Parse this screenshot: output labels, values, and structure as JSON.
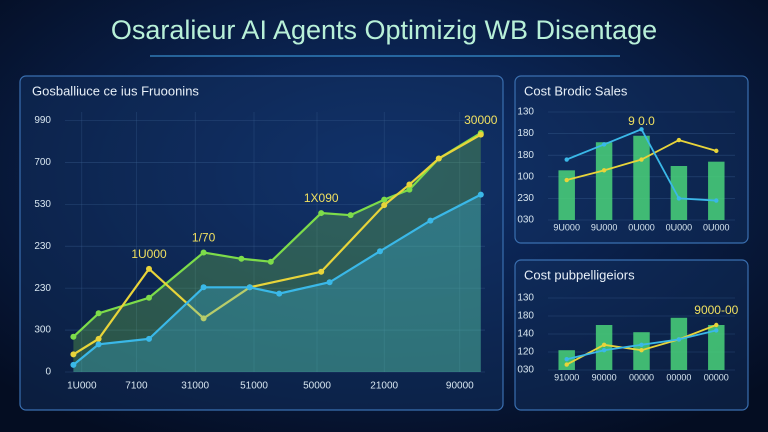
{
  "header": {
    "title": "Osaralieur AI Agents Optimizig WB Disentage"
  },
  "chart_data": [
    {
      "type": "line",
      "title": "Gosballiuce ce ius Fruoonins",
      "xlim": [
        0,
        100
      ],
      "xticks": [
        {
          "value": 4,
          "label": "1U000"
        },
        {
          "value": 17,
          "label": "7100"
        },
        {
          "value": 31,
          "label": "31000"
        },
        {
          "value": 45,
          "label": "51000"
        },
        {
          "value": 60,
          "label": "50000"
        },
        {
          "value": 76,
          "label": "21000"
        },
        {
          "value": 94,
          "label": "90000"
        }
      ],
      "ylim": [
        0,
        620
      ],
      "yticks": [
        0,
        {
          "value": 100,
          "label": "300"
        },
        {
          "value": 200,
          "label": "230"
        },
        {
          "value": 300,
          "label": "230"
        },
        {
          "value": 400,
          "label": "530"
        },
        {
          "value": 500,
          "label": "700"
        },
        {
          "value": 600,
          "label": "990"
        }
      ],
      "grid": true,
      "series": [
        {
          "color": "#7ddc4a",
          "area": true,
          "x": [
            2,
            8,
            20,
            33,
            42,
            49,
            61,
            68,
            76,
            82,
            89,
            99
          ],
          "values": [
            84,
            140,
            177,
            285,
            270,
            263,
            379,
            374,
            411,
            435,
            509,
            570
          ]
        },
        {
          "color": "#e8d43a",
          "area": false,
          "x": [
            2,
            8,
            20,
            33,
            44,
            61,
            76,
            82,
            89,
            99
          ],
          "values": [
            42,
            79,
            246,
            128,
            202,
            239,
            398,
            447,
            509,
            566
          ]
        },
        {
          "color": "#3ab8e8",
          "area": true,
          "x": [
            2,
            8,
            20,
            33,
            44,
            51,
            63,
            75,
            87,
            99
          ],
          "values": [
            17,
            66,
            79,
            202,
            202,
            187,
            214,
            288,
            361,
            423
          ]
        }
      ],
      "annotations": [
        {
          "text": "1U000",
          "series": 1,
          "index": 2
        },
        {
          "text": "1/70",
          "series": 0,
          "index": 3
        },
        {
          "text": "1X090",
          "series": 0,
          "index": 6
        },
        {
          "text": "30000",
          "series": 1,
          "index": 9
        }
      ]
    },
    {
      "type": "combo",
      "title": "Cost Brodic Sales",
      "categories": [
        "9U000",
        "9U000",
        "0U000",
        "0U000",
        "0U000"
      ],
      "ylim": [
        0,
        5
      ],
      "yticks": [
        {
          "value": 0,
          "label": "030"
        },
        {
          "value": 1,
          "label": "230"
        },
        {
          "value": 2,
          "label": "100"
        },
        {
          "value": 3,
          "label": "180"
        },
        {
          "value": 4,
          "label": "180"
        },
        {
          "value": 5,
          "label": "130"
        }
      ],
      "grid": true,
      "series": [
        {
          "type": "bar",
          "color": "#4ad47a",
          "values": [
            2.3,
            3.6,
            3.9,
            2.5,
            2.7
          ]
        },
        {
          "type": "line",
          "color": "#e8d43a",
          "values": [
            1.85,
            2.3,
            2.8,
            3.7,
            3.2
          ]
        },
        {
          "type": "line",
          "color": "#3ab8e8",
          "values": [
            2.8,
            3.5,
            4.2,
            1.0,
            0.9
          ]
        }
      ],
      "annotations": [
        {
          "text": "9 0.0",
          "series": 0,
          "index": 2
        }
      ]
    },
    {
      "type": "combo",
      "title": "Cost pubpelligeiors",
      "categories": [
        "91000",
        "90000",
        "00000",
        "00000",
        "00000"
      ],
      "ylim": [
        0,
        4
      ],
      "yticks": [
        {
          "value": 0,
          "label": "030"
        },
        {
          "value": 1,
          "label": "120"
        },
        {
          "value": 2,
          "label": "140"
        },
        {
          "value": 3,
          "label": "180"
        },
        {
          "value": 4,
          "label": "130"
        }
      ],
      "grid": true,
      "series": [
        {
          "type": "bar",
          "color": "#4ad47a",
          "values": [
            1.1,
            2.5,
            2.1,
            2.9,
            2.5
          ]
        },
        {
          "type": "line",
          "color": "#e8d43a",
          "values": [
            0.3,
            1.4,
            1.1,
            1.7,
            2.5
          ]
        },
        {
          "type": "line",
          "color": "#3ab8e8",
          "values": [
            0.6,
            1.1,
            1.4,
            1.7,
            2.2
          ]
        }
      ],
      "annotations": [
        {
          "text": "9000-00",
          "series": 0,
          "index": 4
        }
      ]
    }
  ]
}
